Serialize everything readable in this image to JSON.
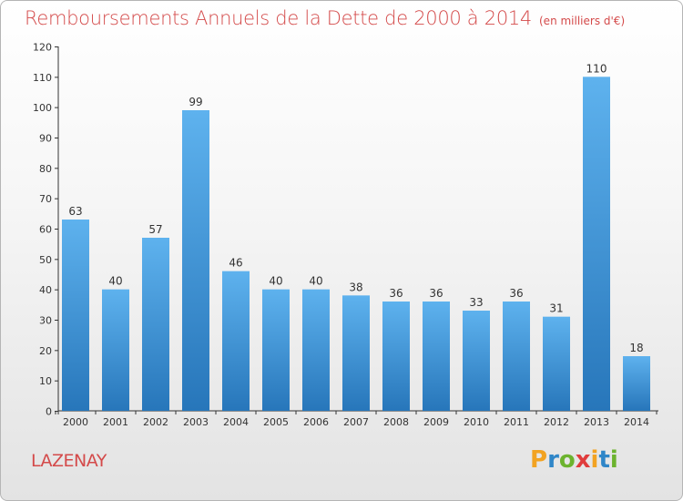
{
  "title": "Remboursements Annuels de la Dette de 2000 à 2014",
  "unit_note": "(en milliers d'€)",
  "place": "LAZENAY",
  "brand": {
    "letters": [
      "P",
      "r",
      "o",
      "x",
      "i",
      "t",
      "i"
    ],
    "colors": [
      "#f2a322",
      "#2f86c8",
      "#6cb32e",
      "#e03c3c",
      "#f2a322",
      "#2f86c8",
      "#6cb32e"
    ]
  },
  "chart_data": {
    "type": "bar",
    "title": "Remboursements Annuels de la Dette de 2000 à 2014",
    "xlabel": "",
    "ylabel": "",
    "categories": [
      "2000",
      "2001",
      "2002",
      "2003",
      "2004",
      "2005",
      "2006",
      "2007",
      "2008",
      "2009",
      "2010",
      "2011",
      "2012",
      "2013",
      "2014"
    ],
    "values": [
      63,
      40,
      57,
      99,
      46,
      40,
      40,
      38,
      36,
      36,
      33,
      36,
      31,
      110,
      18
    ],
    "ylim": [
      0,
      120
    ],
    "yticks": [
      0,
      10,
      20,
      30,
      40,
      50,
      60,
      70,
      80,
      90,
      100,
      110,
      120
    ],
    "grid": false,
    "bar_color": "#4a9fe0",
    "bar_color_dark": "#2a78bd",
    "axis_color": "#333333"
  }
}
